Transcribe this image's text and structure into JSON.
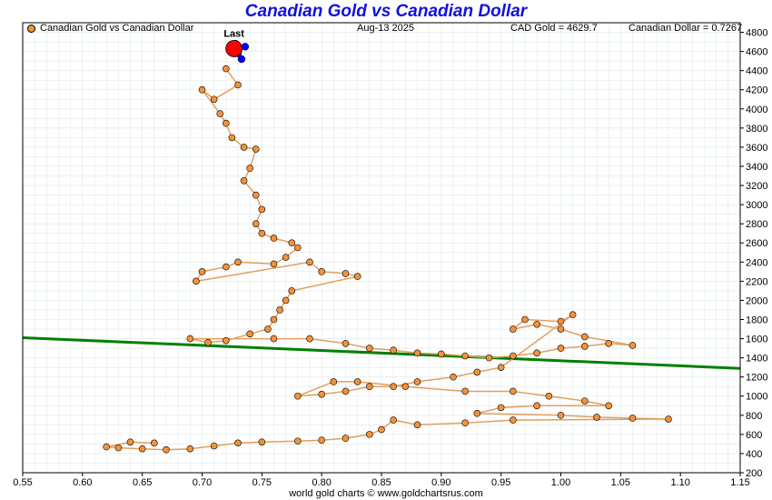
{
  "title": "Canadian Gold vs Canadian Dollar",
  "header": {
    "legend_label": "Canadian Gold vs Canadian Dollar",
    "date": "Aug-13  2025",
    "gold_readout": "CAD Gold = 4629.7",
    "dollar_readout": "Canadian Dollar = 0.7267"
  },
  "footer": "world gold charts © www.goldchartsrus.com",
  "colors": {
    "title": "#1010e0",
    "marker_fill": "#f2923a",
    "path_line": "#e0a060",
    "trend_line": "#008000",
    "last_marker": "#ff0000",
    "recent_marker": "#0000ff",
    "grid": "#dde7e7"
  },
  "chart_data": {
    "type": "scatter",
    "title": "Canadian Gold vs Canadian Dollar",
    "xlabel": "",
    "ylabel": "",
    "xlim": [
      0.55,
      1.15
    ],
    "ylim": [
      200,
      4900
    ],
    "x_ticks": [
      "0.55",
      "0.60",
      "0.65",
      "0.70",
      "0.75",
      "0.80",
      "0.85",
      "0.90",
      "0.95",
      "1.00",
      "1.05",
      "1.10",
      "1.15"
    ],
    "y_ticks": [
      "200",
      "400",
      "600",
      "800",
      "1000",
      "1200",
      "1400",
      "1600",
      "1800",
      "2000",
      "2200",
      "2400",
      "2600",
      "2800",
      "3000",
      "3200",
      "3400",
      "3600",
      "3800",
      "4000",
      "4200",
      "4400",
      "4600",
      "4800"
    ],
    "y_axis_side": "right",
    "grid": true,
    "legend": "top-left",
    "series": [
      {
        "name": "Canadian Gold vs Canadian Dollar",
        "points": [
          [
            0.72,
            4420
          ],
          [
            0.73,
            4250
          ],
          [
            0.71,
            4100
          ],
          [
            0.7,
            4200
          ],
          [
            0.715,
            3950
          ],
          [
            0.72,
            3850
          ],
          [
            0.725,
            3700
          ],
          [
            0.735,
            3600
          ],
          [
            0.745,
            3580
          ],
          [
            0.74,
            3380
          ],
          [
            0.735,
            3250
          ],
          [
            0.745,
            3100
          ],
          [
            0.75,
            2950
          ],
          [
            0.745,
            2800
          ],
          [
            0.75,
            2700
          ],
          [
            0.76,
            2650
          ],
          [
            0.775,
            2600
          ],
          [
            0.78,
            2550
          ],
          [
            0.77,
            2450
          ],
          [
            0.76,
            2380
          ],
          [
            0.73,
            2400
          ],
          [
            0.72,
            2350
          ],
          [
            0.7,
            2300
          ],
          [
            0.695,
            2200
          ],
          [
            0.79,
            2400
          ],
          [
            0.8,
            2300
          ],
          [
            0.82,
            2280
          ],
          [
            0.83,
            2250
          ],
          [
            0.775,
            2100
          ],
          [
            0.77,
            2000
          ],
          [
            0.765,
            1900
          ],
          [
            0.76,
            1800
          ],
          [
            0.755,
            1700
          ],
          [
            0.74,
            1650
          ],
          [
            0.72,
            1580
          ],
          [
            0.705,
            1560
          ],
          [
            0.69,
            1600
          ],
          [
            0.76,
            1600
          ],
          [
            0.79,
            1600
          ],
          [
            0.82,
            1550
          ],
          [
            0.84,
            1500
          ],
          [
            0.86,
            1480
          ],
          [
            0.88,
            1450
          ],
          [
            0.9,
            1440
          ],
          [
            0.92,
            1420
          ],
          [
            0.94,
            1400
          ],
          [
            0.96,
            1420
          ],
          [
            0.98,
            1450
          ],
          [
            1.0,
            1500
          ],
          [
            1.02,
            1520
          ],
          [
            1.04,
            1550
          ],
          [
            1.06,
            1530
          ],
          [
            1.02,
            1620
          ],
          [
            1.0,
            1700
          ],
          [
            0.98,
            1750
          ],
          [
            0.96,
            1700
          ],
          [
            0.97,
            1800
          ],
          [
            1.0,
            1780
          ],
          [
            1.01,
            1850
          ],
          [
            0.95,
            1300
          ],
          [
            0.93,
            1250
          ],
          [
            0.91,
            1200
          ],
          [
            0.88,
            1150
          ],
          [
            0.86,
            1100
          ],
          [
            0.84,
            1100
          ],
          [
            0.82,
            1050
          ],
          [
            0.8,
            1020
          ],
          [
            0.78,
            1000
          ],
          [
            0.81,
            1150
          ],
          [
            0.83,
            1150
          ],
          [
            0.87,
            1100
          ],
          [
            0.92,
            1050
          ],
          [
            0.96,
            1050
          ],
          [
            0.99,
            1000
          ],
          [
            1.02,
            950
          ],
          [
            1.04,
            900
          ],
          [
            0.98,
            900
          ],
          [
            0.95,
            880
          ],
          [
            0.93,
            820
          ],
          [
            1.0,
            800
          ],
          [
            1.03,
            780
          ],
          [
            1.06,
            770
          ],
          [
            1.09,
            760
          ],
          [
            0.96,
            750
          ],
          [
            0.92,
            720
          ],
          [
            0.88,
            700
          ],
          [
            0.86,
            750
          ],
          [
            0.85,
            650
          ],
          [
            0.84,
            600
          ],
          [
            0.82,
            560
          ],
          [
            0.8,
            540
          ],
          [
            0.78,
            530
          ],
          [
            0.75,
            520
          ],
          [
            0.73,
            510
          ],
          [
            0.71,
            480
          ],
          [
            0.69,
            450
          ],
          [
            0.67,
            440
          ],
          [
            0.65,
            450
          ],
          [
            0.63,
            460
          ],
          [
            0.62,
            470
          ],
          [
            0.64,
            520
          ],
          [
            0.66,
            510
          ]
        ]
      }
    ],
    "recent_points": [
      [
        0.727,
        4620
      ],
      [
        0.73,
        4580
      ],
      [
        0.733,
        4520
      ],
      [
        0.736,
        4650
      ],
      [
        0.728,
        4680
      ]
    ],
    "last_point": {
      "label": "Last",
      "x": 0.7267,
      "y": 4629.7
    },
    "trend_line": {
      "start": [
        0.55,
        1610
      ],
      "end": [
        1.15,
        1290
      ]
    }
  }
}
